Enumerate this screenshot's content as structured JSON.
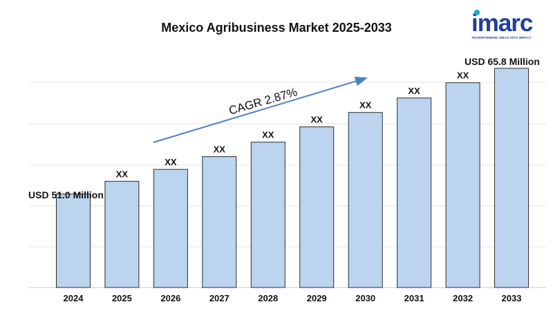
{
  "chart_data": {
    "type": "bar",
    "title": "Mexico Agribusiness Market 2025-2033",
    "categories": [
      "2024",
      "2025",
      "2026",
      "2027",
      "2028",
      "2029",
      "2030",
      "2031",
      "2032",
      "2033"
    ],
    "values": [
      51.0,
      52.5,
      53.9,
      55.4,
      57.1,
      58.9,
      60.6,
      62.3,
      64.1,
      65.8
    ],
    "data_labels": [
      "",
      "XX",
      "XX",
      "XX",
      "XX",
      "XX",
      "XX",
      "XX",
      "XX",
      ""
    ],
    "ylim": [
      40,
      67
    ],
    "grid": true,
    "annotations": {
      "start_value": "USD 51.0 Million",
      "end_value": "USD 65.8 Million",
      "cagr": "CAGR 2.87%"
    }
  },
  "logo": {
    "text": "imarc",
    "tagline": "TRANSFORMING IDEAS INTO IMPACT"
  },
  "colors": {
    "bar_fill": "#bcd4ee",
    "bar_stroke": "#2b2b2b",
    "arrow": "#4f81bd",
    "logo_blue": "#1f3f97",
    "logo_dot": "#1aa6e0"
  }
}
